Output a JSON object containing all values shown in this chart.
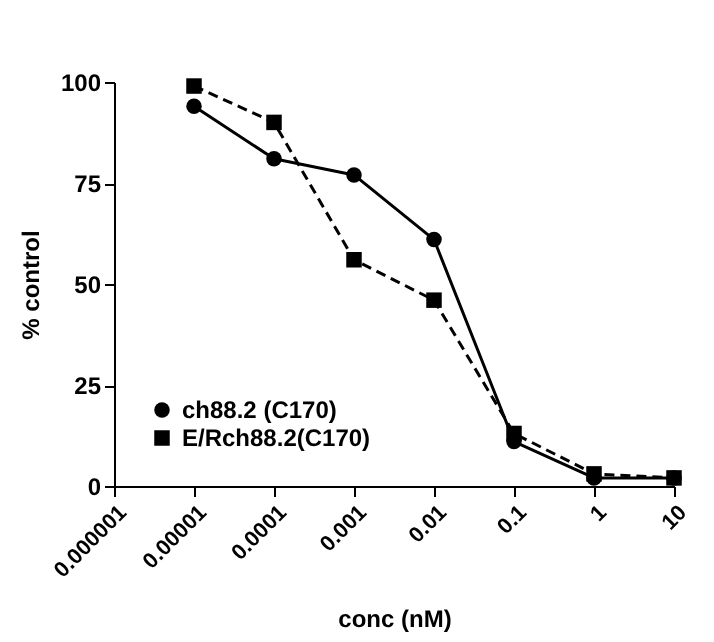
{
  "chart_data": {
    "type": "line",
    "xlabel": "conc (nM)",
    "ylabel": "% control",
    "x": [
      1e-05,
      0.0001,
      0.001,
      0.01,
      0.1,
      1,
      10
    ],
    "series": [
      {
        "name": "ch88.2 (C170)",
        "color": "#000000",
        "marker": "circle",
        "line_style": "solid",
        "values": [
          94,
          81,
          77,
          61,
          11,
          2,
          2
        ]
      },
      {
        "name": "E/Rch88.2(C170)",
        "color": "#000000",
        "marker": "square",
        "line_style": "dashed",
        "values": [
          99,
          90,
          56,
          46,
          13,
          3,
          2
        ]
      }
    ],
    "log": "x",
    "xlim": [
      1e-06,
      10
    ],
    "xticks": [
      {
        "value": 1e-06,
        "label": "0.000001"
      },
      {
        "value": 1e-05,
        "label": "0.00001"
      },
      0.0001,
      0.001,
      0.01,
      0.1,
      1,
      10
    ],
    "ylim": [
      0,
      100
    ],
    "yticks": [
      0,
      25,
      50,
      75,
      100
    ],
    "grid": false,
    "legend": "bottom left"
  }
}
